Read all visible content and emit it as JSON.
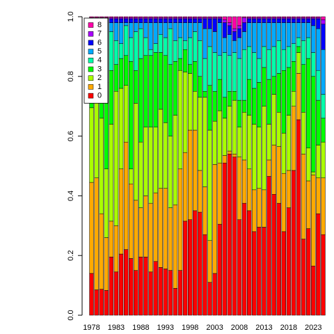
{
  "chart_data": {
    "type": "stacked_bar",
    "categories": [
      "1978",
      null,
      null,
      null,
      null,
      "1983",
      null,
      null,
      null,
      null,
      "1988",
      null,
      null,
      null,
      null,
      "1993",
      null,
      null,
      null,
      null,
      "1998",
      null,
      null,
      null,
      null,
      "2003",
      null,
      null,
      null,
      null,
      "2008",
      null,
      null,
      null,
      null,
      "2013",
      null,
      null,
      null,
      null,
      "2018",
      null,
      null,
      null,
      null,
      "2023",
      null,
      null
    ],
    "series": [
      {
        "name": "0",
        "color": "#FF0000",
        "values": [
          0.14,
          0.085,
          0.087,
          0.083,
          0.195,
          0.145,
          0.205,
          0.22,
          0.19,
          0.15,
          0.195,
          0.195,
          0.145,
          0.18,
          0.16,
          0.155,
          0.15,
          0.09,
          0.15,
          0.315,
          0.32,
          0.35,
          0.345,
          0.27,
          0.11,
          0.14,
          0.305,
          0.51,
          0.54,
          0.53,
          0.32,
          0.375,
          0.35,
          0.28,
          0.295,
          0.295,
          0.465,
          0.405,
          0.375,
          0.28,
          0.36,
          0.485,
          0.655,
          0.255,
          0.29,
          0.165,
          0.34,
          0.27
        ]
      },
      {
        "name": "1",
        "color": "#FFAA00",
        "values": [
          0.305,
          0.375,
          0.253,
          0.177,
          0.12,
          0.155,
          0.285,
          0.36,
          0.25,
          0.235,
          0.165,
          0.205,
          0.23,
          0.23,
          0.265,
          0.27,
          0.21,
          0.28,
          0.34,
          0.23,
          0.3,
          0.27,
          0.14,
          0.16,
          0.14,
          0.365,
          0.205,
          0.025,
          0.01,
          0.01,
          0.21,
          0.145,
          0.14,
          0.14,
          0.13,
          0.125,
          0.055,
          0.165,
          0.19,
          0.195,
          0.125,
          0.215,
          0.155,
          0.285,
          0.16,
          0.305,
          0.12,
          0.19
        ]
      },
      {
        "name": "2",
        "color": "#AAFF00",
        "values": [
          0.25,
          0.27,
          0.32,
          0.23,
          0.325,
          0.45,
          0.27,
          0.19,
          0.05,
          0.325,
          0.22,
          0.23,
          0.255,
          0.22,
          0.265,
          0.22,
          0.24,
          0.3,
          0.33,
          0.27,
          0.19,
          0.13,
          0.245,
          0.3,
          0.37,
          0.145,
          0.175,
          0.125,
          0.15,
          0.18,
          0.1,
          0.16,
          0.18,
          0.22,
          0.205,
          0.28,
          0.12,
          0.17,
          0.115,
          0.135,
          0.185,
          0.05,
          0.07,
          0.14,
          0.11,
          0.01,
          0.11,
          0.12
        ]
      },
      {
        "name": "3",
        "color": "#00FF00",
        "values": [
          0.145,
          0.12,
          0.16,
          0.29,
          0.18,
          0.09,
          0.1,
          0.1,
          0.36,
          0.11,
          0.28,
          0.24,
          0.24,
          0.25,
          0.19,
          0.225,
          0.24,
          0.18,
          0.04,
          0.075,
          0.03,
          0.1,
          0.07,
          0.02,
          0.15,
          0.1,
          0.105,
          0.07,
          0.05,
          0.03,
          0.09,
          0.04,
          0.12,
          0.12,
          0.15,
          0.13,
          0.15,
          0.06,
          0.13,
          0.21,
          0.16,
          0.1,
          0.02,
          0.16,
          0.3,
          0.32,
          0.15,
          0.08
        ]
      },
      {
        "name": "4",
        "color": "#00FFAA",
        "values": [
          0.07,
          0.07,
          0.1,
          0.11,
          0.13,
          0.08,
          0.05,
          0.1,
          0.08,
          0.13,
          0.1,
          0.06,
          0.02,
          0.03,
          0.06,
          0.06,
          0.12,
          0.07,
          0.07,
          0.03,
          0.09,
          0.1,
          0.12,
          0.11,
          0.13,
          0.13,
          0.08,
          0.15,
          0.12,
          0.13,
          0.14,
          0.17,
          0.11,
          0.12,
          0.08,
          0.07,
          0.1,
          0.1,
          0.11,
          0.07,
          0.07,
          0.06,
          0.03,
          0.08,
          0.07,
          0.08,
          0.1,
          0.08
        ]
      },
      {
        "name": "5",
        "color": "#00AAFF",
        "values": [
          0.07,
          0.06,
          0.06,
          0.09,
          0.03,
          0.06,
          0.07,
          0.01,
          0.05,
          0.03,
          0.02,
          0.05,
          0.09,
          0.07,
          0.04,
          0.05,
          0.02,
          0.06,
          0.05,
          0.06,
          0.05,
          0.03,
          0.06,
          0.1,
          0.06,
          0.07,
          0.11,
          0.05,
          0.07,
          0.04,
          0.07,
          0.06,
          0.08,
          0.1,
          0.12,
          0.08,
          0.09,
          0.08,
          0.06,
          0.09,
          0.08,
          0.07,
          0.05,
          0.06,
          0.05,
          0.09,
          0.14,
          0.15
        ]
      },
      {
        "name": "6",
        "color": "#0000FF",
        "values": [
          0.013,
          0.013,
          0.013,
          0.013,
          0.013,
          0.013,
          0.013,
          0.013,
          0.013,
          0.013,
          0.013,
          0.013,
          0.013,
          0.013,
          0.013,
          0.013,
          0.013,
          0.013,
          0.013,
          0.013,
          0.013,
          0.013,
          0.013,
          0.033,
          0.033,
          0.043,
          0.013,
          0.05,
          0.03,
          0.03,
          0.03,
          0.03,
          0.013,
          0.013,
          0.013,
          0.013,
          0.013,
          0.013,
          0.013,
          0.013,
          0.013,
          0.013,
          0.013,
          0.013,
          0.013,
          0.023,
          0.033,
          0.085
        ]
      },
      {
        "name": "7",
        "color": "#AA00FF",
        "values": [
          0.004,
          0.004,
          0.004,
          0.004,
          0.004,
          0.004,
          0.004,
          0.004,
          0.004,
          0.004,
          0.004,
          0.004,
          0.004,
          0.004,
          0.004,
          0.004,
          0.004,
          0.004,
          0.004,
          0.004,
          0.004,
          0.004,
          0.004,
          0.004,
          0.004,
          0.004,
          0.004,
          0.01,
          0.01,
          0.01,
          0.01,
          0.017,
          0.004,
          0.004,
          0.004,
          0.004,
          0.004,
          0.004,
          0.004,
          0.004,
          0.004,
          0.004,
          0.004,
          0.004,
          0.004,
          0.004,
          0.004,
          0.015
        ]
      },
      {
        "name": "8",
        "color": "#FF00AA",
        "values": [
          0.003,
          0.003,
          0.003,
          0.003,
          0.003,
          0.003,
          0.003,
          0.003,
          0.003,
          0.003,
          0.003,
          0.003,
          0.003,
          0.003,
          0.003,
          0.003,
          0.003,
          0.003,
          0.003,
          0.003,
          0.003,
          0.003,
          0.003,
          0.003,
          0.003,
          0.003,
          0.003,
          0.01,
          0.02,
          0.04,
          0.03,
          0.003,
          0.003,
          0.003,
          0.003,
          0.003,
          0.003,
          0.003,
          0.003,
          0.003,
          0.003,
          0.003,
          0.003,
          0.003,
          0.003,
          0.003,
          0.003,
          0.01
        ]
      }
    ],
    "ylim": [
      0,
      1
    ],
    "yticks": [
      {
        "value": 0,
        "label": "0.0"
      },
      0.2,
      0.4,
      0.6,
      0.8,
      {
        "value": 1,
        "label": "1.0"
      }
    ],
    "legend": "topleft"
  }
}
